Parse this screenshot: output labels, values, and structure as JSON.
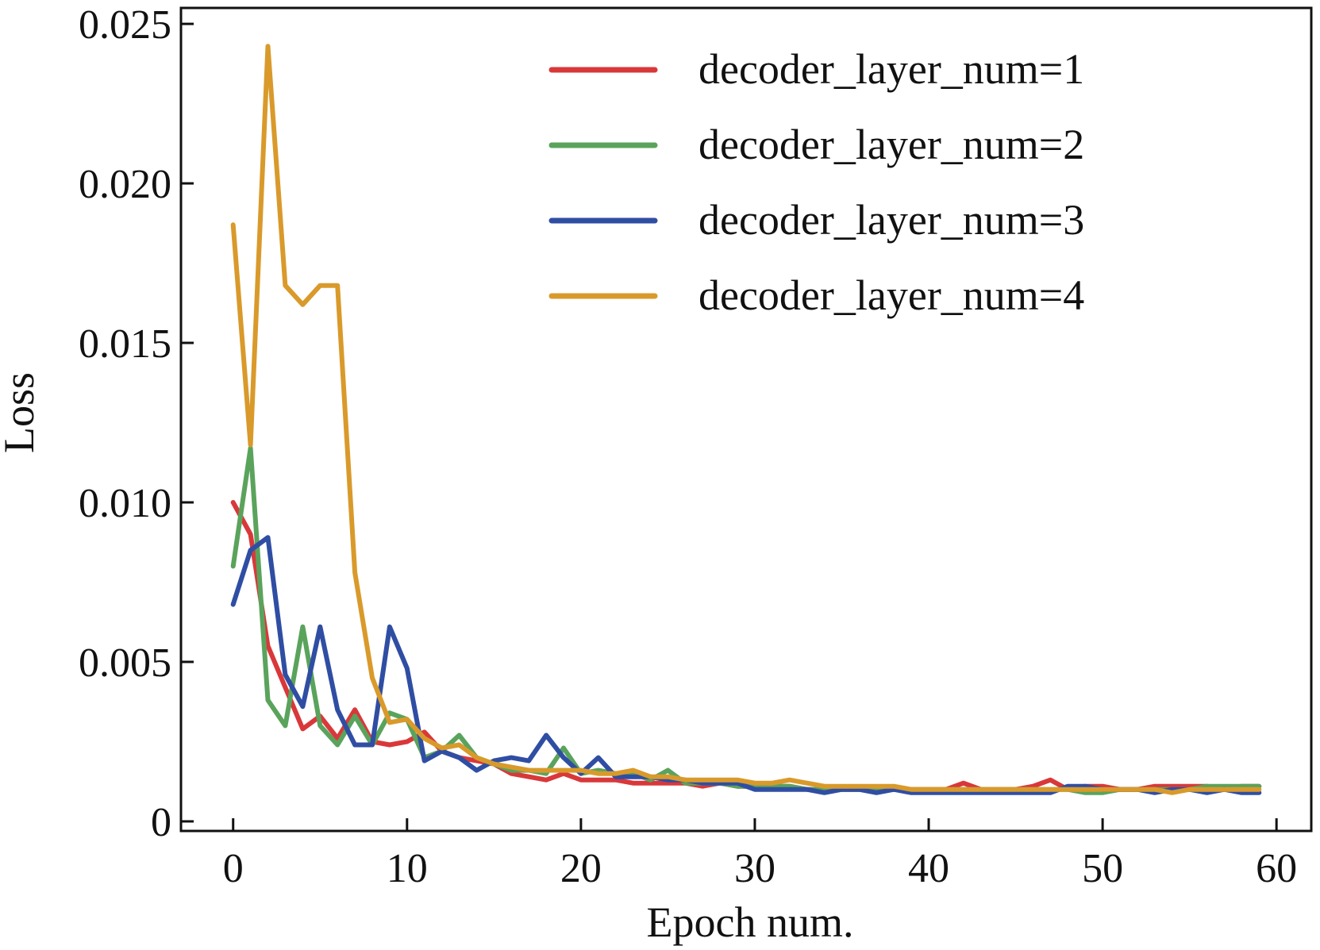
{
  "chart_data": {
    "type": "line",
    "title": "",
    "xlabel": "Epoch num.",
    "ylabel": "Loss",
    "xlim": [
      -3,
      62
    ],
    "ylim": [
      -0.0003,
      0.0255
    ],
    "xticks": [
      0,
      10,
      20,
      30,
      40,
      50,
      60
    ],
    "xtick_labels": [
      "0",
      "10",
      "20",
      "30",
      "40",
      "50",
      "60"
    ],
    "yticks": [
      0,
      0.005,
      0.01,
      0.015,
      0.02,
      0.025
    ],
    "ytick_labels": [
      "0",
      "0.005",
      "0.010",
      "0.015",
      "0.020",
      "0.025"
    ],
    "grid": false,
    "legend_position": "top-right",
    "series": [
      {
        "name": "decoder_layer_num=1",
        "color": "#d9383a",
        "x": [
          0,
          1,
          2,
          3,
          4,
          5,
          6,
          7,
          8,
          9,
          10,
          11,
          12,
          13,
          14,
          15,
          16,
          17,
          18,
          19,
          20,
          21,
          22,
          23,
          24,
          25,
          26,
          27,
          28,
          29,
          30,
          31,
          32,
          33,
          34,
          35,
          36,
          37,
          38,
          39,
          40,
          41,
          42,
          43,
          44,
          45,
          46,
          47,
          48,
          49,
          50,
          51,
          52,
          53,
          54,
          55,
          56,
          57,
          58,
          59
        ],
        "values": [
          0.01,
          0.009,
          0.0055,
          0.0042,
          0.0029,
          0.0033,
          0.0026,
          0.0035,
          0.0025,
          0.0024,
          0.0025,
          0.0028,
          0.0022,
          0.002,
          0.0019,
          0.0018,
          0.0015,
          0.0014,
          0.0013,
          0.0015,
          0.0013,
          0.0013,
          0.0013,
          0.0012,
          0.0012,
          0.0012,
          0.0012,
          0.0011,
          0.0012,
          0.0011,
          0.0011,
          0.0011,
          0.0011,
          0.001,
          0.001,
          0.001,
          0.001,
          0.001,
          0.001,
          0.001,
          0.001,
          0.001,
          0.0012,
          0.001,
          0.001,
          0.001,
          0.0011,
          0.0013,
          0.001,
          0.0011,
          0.0011,
          0.001,
          0.001,
          0.0011,
          0.0011,
          0.0011,
          0.0011,
          0.001,
          0.0011,
          0.0011
        ]
      },
      {
        "name": "decoder_layer_num=2",
        "color": "#5aa35c",
        "x": [
          0,
          1,
          2,
          3,
          4,
          5,
          6,
          7,
          8,
          9,
          10,
          11,
          12,
          13,
          14,
          15,
          16,
          17,
          18,
          19,
          20,
          21,
          22,
          23,
          24,
          25,
          26,
          27,
          28,
          29,
          30,
          31,
          32,
          33,
          34,
          35,
          36,
          37,
          38,
          39,
          40,
          41,
          42,
          43,
          44,
          45,
          46,
          47,
          48,
          49,
          50,
          51,
          52,
          53,
          54,
          55,
          56,
          57,
          58,
          59
        ],
        "values": [
          0.008,
          0.0117,
          0.0038,
          0.003,
          0.0061,
          0.003,
          0.0024,
          0.0033,
          0.0024,
          0.0034,
          0.0032,
          0.002,
          0.0022,
          0.0027,
          0.002,
          0.0018,
          0.0016,
          0.0016,
          0.0015,
          0.0023,
          0.0015,
          0.0016,
          0.0015,
          0.0015,
          0.0013,
          0.0016,
          0.0012,
          0.0012,
          0.0012,
          0.0011,
          0.0011,
          0.0011,
          0.0011,
          0.001,
          0.001,
          0.001,
          0.001,
          0.001,
          0.001,
          0.001,
          0.001,
          0.001,
          0.001,
          0.001,
          0.001,
          0.001,
          0.001,
          0.001,
          0.001,
          0.0009,
          0.0009,
          0.001,
          0.001,
          0.001,
          0.001,
          0.001,
          0.0011,
          0.0011,
          0.0011,
          0.0011
        ]
      },
      {
        "name": "decoder_layer_num=3",
        "color": "#2f4ea3",
        "x": [
          0,
          1,
          2,
          3,
          4,
          5,
          6,
          7,
          8,
          9,
          10,
          11,
          12,
          13,
          14,
          15,
          16,
          17,
          18,
          19,
          20,
          21,
          22,
          23,
          24,
          25,
          26,
          27,
          28,
          29,
          30,
          31,
          32,
          33,
          34,
          35,
          36,
          37,
          38,
          39,
          40,
          41,
          42,
          43,
          44,
          45,
          46,
          47,
          48,
          49,
          50,
          51,
          52,
          53,
          54,
          55,
          56,
          57,
          58,
          59
        ],
        "values": [
          0.0068,
          0.0085,
          0.0089,
          0.0046,
          0.0036,
          0.0061,
          0.0035,
          0.0024,
          0.0024,
          0.0061,
          0.0048,
          0.0019,
          0.0022,
          0.002,
          0.0016,
          0.0019,
          0.002,
          0.0019,
          0.0027,
          0.002,
          0.0015,
          0.002,
          0.0014,
          0.0014,
          0.0014,
          0.0013,
          0.0013,
          0.0012,
          0.0012,
          0.0012,
          0.001,
          0.001,
          0.001,
          0.001,
          0.0009,
          0.001,
          0.001,
          0.0009,
          0.001,
          0.0009,
          0.0009,
          0.0009,
          0.0009,
          0.0009,
          0.0009,
          0.0009,
          0.0009,
          0.0009,
          0.0011,
          0.0011,
          0.001,
          0.001,
          0.001,
          0.0009,
          0.001,
          0.001,
          0.0009,
          0.001,
          0.0009,
          0.0009
        ]
      },
      {
        "name": "decoder_layer_num=4",
        "color": "#d99a2b",
        "x": [
          0,
          1,
          2,
          3,
          4,
          5,
          6,
          7,
          8,
          9,
          10,
          11,
          12,
          13,
          14,
          15,
          16,
          17,
          18,
          19,
          20,
          21,
          22,
          23,
          24,
          25,
          26,
          27,
          28,
          29,
          30,
          31,
          32,
          33,
          34,
          35,
          36,
          37,
          38,
          39,
          40,
          41,
          42,
          43,
          44,
          45,
          46,
          47,
          48,
          49,
          50,
          51,
          52,
          53,
          54,
          55,
          56,
          57,
          58,
          59
        ],
        "values": [
          0.0187,
          0.0118,
          0.0243,
          0.0168,
          0.0162,
          0.0168,
          0.0168,
          0.0078,
          0.0045,
          0.0031,
          0.0032,
          0.0026,
          0.0023,
          0.0024,
          0.002,
          0.0018,
          0.0017,
          0.0016,
          0.0016,
          0.0016,
          0.0016,
          0.0015,
          0.0015,
          0.0016,
          0.0014,
          0.0014,
          0.0013,
          0.0013,
          0.0013,
          0.0013,
          0.0012,
          0.0012,
          0.0013,
          0.0012,
          0.0011,
          0.0011,
          0.0011,
          0.0011,
          0.0011,
          0.001,
          0.001,
          0.001,
          0.001,
          0.001,
          0.001,
          0.001,
          0.001,
          0.001,
          0.001,
          0.001,
          0.001,
          0.001,
          0.001,
          0.001,
          0.0009,
          0.001,
          0.001,
          0.001,
          0.001,
          0.001
        ]
      }
    ]
  }
}
